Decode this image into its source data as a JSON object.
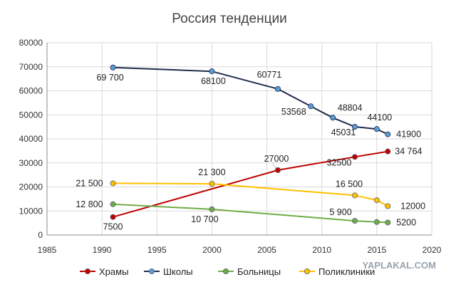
{
  "chart_data": {
    "type": "line",
    "title": "Россия тенденции",
    "xlim": [
      1985,
      2020
    ],
    "ylim": [
      0,
      80000
    ],
    "x_ticks": [
      "1985",
      "1990",
      "1995",
      "2000",
      "2005",
      "2010",
      "2015",
      "2020"
    ],
    "y_ticks": [
      "0",
      "10000",
      "20000",
      "30000",
      "40000",
      "50000",
      "60000",
      "70000",
      "80000"
    ],
    "grid": true,
    "legend_position": "bottom",
    "series": [
      {
        "name": "Храмы",
        "color": "#c00000",
        "points": [
          [
            1991,
            7500
          ],
          [
            2006,
            27000
          ],
          [
            2013,
            32500
          ],
          [
            2016,
            34764
          ]
        ],
        "labels": [
          {
            "text": "7500",
            "index": 0
          },
          {
            "text": "27000",
            "index": 1
          },
          {
            "text": "32500",
            "index": 2
          },
          {
            "text": "34 764",
            "index": 3
          }
        ]
      },
      {
        "name": "Школы",
        "color": "#1f2d4d",
        "points": [
          [
            1991,
            69700
          ],
          [
            2000,
            68100
          ],
          [
            2006,
            60771
          ],
          [
            2009,
            53568
          ],
          [
            2011,
            48804
          ],
          [
            2013,
            45031
          ],
          [
            2015,
            44100
          ],
          [
            2016,
            41900
          ]
        ],
        "labels": [
          {
            "text": "69 700",
            "index": 0
          },
          {
            "text": "68100",
            "index": 1
          },
          {
            "text": "60771",
            "index": 2
          },
          {
            "text": "53568",
            "index": 3
          },
          {
            "text": "48804",
            "index": 4
          },
          {
            "text": "45031",
            "index": 5
          },
          {
            "text": "44100",
            "index": 6
          },
          {
            "text": "41900",
            "index": 7
          }
        ]
      },
      {
        "name": "Больницы",
        "color": "#70ad47",
        "points": [
          [
            1991,
            12800
          ],
          [
            2000,
            10700
          ],
          [
            2013,
            5900
          ],
          [
            2015,
            5400
          ],
          [
            2016,
            5200
          ]
        ],
        "labels": [
          {
            "text": "12 800",
            "index": 0
          },
          {
            "text": "10 700",
            "index": 1
          },
          {
            "text": "5 900",
            "index": 2
          },
          {
            "text": "5200",
            "index": 4
          }
        ]
      },
      {
        "name": "Поликлиники",
        "color": "#ffc000",
        "points": [
          [
            1991,
            21500
          ],
          [
            2000,
            21300
          ],
          [
            2013,
            16500
          ],
          [
            2015,
            14500
          ],
          [
            2016,
            12000
          ]
        ],
        "labels": [
          {
            "text": "21 500",
            "index": 0
          },
          {
            "text": "21 300",
            "index": 1
          },
          {
            "text": "16 500",
            "index": 2
          },
          {
            "text": "12000",
            "index": 4
          }
        ]
      }
    ]
  },
  "watermark": "YAPLAKAL.COM"
}
